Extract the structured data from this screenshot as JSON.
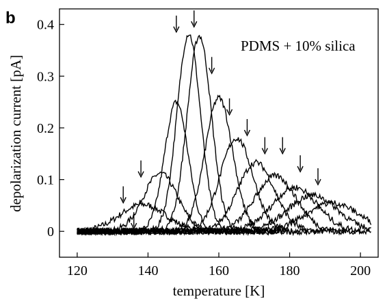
{
  "panel_label": "b",
  "chart_data": {
    "type": "line",
    "title": "",
    "annotation": "PDMS + 10% silica",
    "xlabel": "temperature [K]",
    "ylabel": "depolarization current [pA]",
    "xlim": [
      115,
      205
    ],
    "ylim": [
      -0.05,
      0.43
    ],
    "x_ticks": [
      120,
      140,
      160,
      180,
      200
    ],
    "y_ticks": [
      0,
      0.1,
      0.2,
      0.3,
      0.4
    ],
    "x_tick_labels": [
      "120",
      "140",
      "160",
      "180",
      "200"
    ],
    "y_tick_labels": [
      "0",
      "0.1",
      "0.2",
      "0.3",
      "0.4"
    ],
    "grid": false,
    "line_color": "#000000",
    "series": [
      {
        "polarization_temperature": 133,
        "peak_x": 138.5,
        "peak_y": 0.052,
        "width": 6.5
      },
      {
        "polarization_temperature": 138,
        "peak_x": 143.5,
        "peak_y": 0.112,
        "width": 4.8
      },
      {
        "polarization_temperature": 148,
        "peak_x": 148.0,
        "peak_y": 0.25,
        "width": 3.3
      },
      {
        "polarization_temperature": 153,
        "peak_x": 151.5,
        "peak_y": 0.382,
        "width": 3.3
      },
      {
        "polarization_temperature": 158,
        "peak_x": 154.5,
        "peak_y": 0.378,
        "width": 3.4
      },
      {
        "polarization_temperature": 163,
        "peak_x": 160.0,
        "peak_y": 0.258,
        "width": 3.9
      },
      {
        "polarization_temperature": 168,
        "peak_x": 165.0,
        "peak_y": 0.18,
        "width": 4.6
      },
      {
        "polarization_temperature": 173,
        "peak_x": 170.5,
        "peak_y": 0.133,
        "width": 5.2
      },
      {
        "polarization_temperature": 178,
        "peak_x": 176.0,
        "peak_y": 0.107,
        "width": 5.8
      },
      {
        "polarization_temperature": 183,
        "peak_x": 181.5,
        "peak_y": 0.085,
        "width": 6.4
      },
      {
        "polarization_temperature": 188,
        "peak_x": 186.5,
        "peak_y": 0.07,
        "width": 7.0
      },
      {
        "polarization_temperature": 193,
        "peak_x": 192.0,
        "peak_y": 0.055,
        "width": 7.5
      }
    ],
    "arrows": [
      {
        "x": 133,
        "y_tip": 0.05
      },
      {
        "x": 138,
        "y_tip": 0.1
      },
      {
        "x": 148,
        "y_tip": 0.38
      },
      {
        "x": 153,
        "y_tip": 0.39
      },
      {
        "x": 158,
        "y_tip": 0.3
      },
      {
        "x": 163,
        "y_tip": 0.22
      },
      {
        "x": 168,
        "y_tip": 0.18
      },
      {
        "x": 173,
        "y_tip": 0.145
      },
      {
        "x": 178,
        "y_tip": 0.145
      },
      {
        "x": 183,
        "y_tip": 0.11
      },
      {
        "x": 188,
        "y_tip": 0.085
      },
      {
        "x": 136,
        "y_tip": 0.0
      }
    ]
  }
}
